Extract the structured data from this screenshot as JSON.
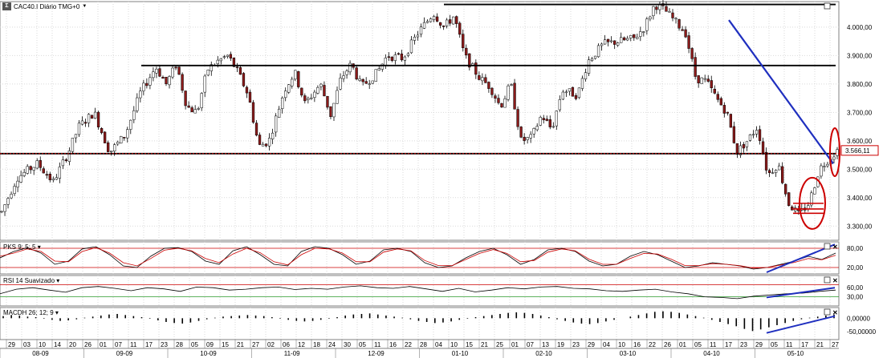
{
  "header": {
    "title": "CAC40.I Diário TMG+0",
    "dropdown_icon": "chevron-down-icon",
    "logo_icon": "chart-logo-icon"
  },
  "colors": {
    "bull_candle": "#ffffff",
    "bear_candle": "#8b1a1a",
    "wick": "#000000",
    "trend_line": "#1f2fbf",
    "horizontal_line": "#000000",
    "red_marker": "#cc0000",
    "grid": "#d9d9d9",
    "price_label_bg": "#ffffff",
    "price_label_border": "#cc0000",
    "indicator_signal": "#cc0000",
    "band_line": "#cc0000",
    "rsi_low_band": "#2a9a2a"
  },
  "chart_data": [
    {
      "type": "candlestick",
      "title": "CAC40.I Diário TMG+0",
      "ylim": [
        3250,
        4090
      ],
      "yticks": [
        "4.000,00",
        "3.900,00",
        "3.800,00",
        "3.700,00",
        "3.600,00",
        "3.500,00",
        "3.400,00",
        "3.300,00"
      ],
      "ytick_values": [
        4000,
        3900,
        3800,
        3700,
        3600,
        3500,
        3400,
        3300
      ],
      "last_price_label": "3.566,11",
      "last_price": 3566.11,
      "horizontal_levels": [
        4080,
        3865,
        3555
      ],
      "trendline": {
        "from_value": 4025,
        "to_value": 3520
      },
      "price_path": [
        [
          0,
          3350
        ],
        [
          6,
          3470
        ],
        [
          14,
          3520
        ],
        [
          20,
          3455
        ],
        [
          26,
          3560
        ],
        [
          30,
          3650
        ],
        [
          36,
          3700
        ],
        [
          42,
          3560
        ],
        [
          48,
          3620
        ],
        [
          54,
          3770
        ],
        [
          60,
          3860
        ],
        [
          64,
          3800
        ],
        [
          68,
          3870
        ],
        [
          72,
          3720
        ],
        [
          76,
          3700
        ],
        [
          80,
          3850
        ],
        [
          84,
          3880
        ],
        [
          88,
          3900
        ],
        [
          92,
          3840
        ],
        [
          96,
          3760
        ],
        [
          100,
          3580
        ],
        [
          104,
          3600
        ],
        [
          110,
          3780
        ],
        [
          114,
          3840
        ],
        [
          118,
          3730
        ],
        [
          124,
          3800
        ],
        [
          128,
          3690
        ],
        [
          132,
          3820
        ],
        [
          136,
          3870
        ],
        [
          140,
          3790
        ],
        [
          146,
          3840
        ],
        [
          150,
          3900
        ],
        [
          156,
          3890
        ],
        [
          162,
          3980
        ],
        [
          168,
          4050
        ],
        [
          172,
          4000
        ],
        [
          176,
          4040
        ],
        [
          180,
          3900
        ],
        [
          186,
          3820
        ],
        [
          190,
          3790
        ],
        [
          194,
          3720
        ],
        [
          198,
          3800
        ],
        [
          202,
          3600
        ],
        [
          206,
          3610
        ],
        [
          210,
          3690
        ],
        [
          214,
          3640
        ],
        [
          218,
          3780
        ],
        [
          224,
          3760
        ],
        [
          228,
          3880
        ],
        [
          234,
          3940
        ],
        [
          240,
          3950
        ],
        [
          246,
          3960
        ],
        [
          250,
          4000
        ],
        [
          254,
          4080
        ],
        [
          258,
          4060
        ],
        [
          262,
          4020
        ],
        [
          266,
          3980
        ],
        [
          270,
          3820
        ],
        [
          274,
          3810
        ],
        [
          278,
          3750
        ],
        [
          282,
          3700
        ],
        [
          286,
          3560
        ],
        [
          290,
          3600
        ],
        [
          294,
          3650
        ],
        [
          298,
          3480
        ],
        [
          302,
          3520
        ],
        [
          306,
          3380
        ],
        [
          310,
          3340
        ],
        [
          314,
          3380
        ],
        [
          318,
          3500
        ],
        [
          322,
          3540
        ],
        [
          325,
          3566
        ]
      ],
      "red_marker_bars": [
        [
          312,
          3380
        ],
        [
          312,
          3360
        ],
        [
          312,
          3345
        ]
      ]
    },
    {
      "type": "line",
      "title": "PKS 9; 5; 5",
      "ylim": [
        0,
        100
      ],
      "yticks": [
        "80,00",
        "20,00"
      ],
      "ytick_values": [
        80,
        20
      ],
      "bands": [
        80,
        20
      ],
      "series": [
        {
          "values": [
            50,
            70,
            82,
            65,
            30,
            40,
            78,
            85,
            60,
            25,
            20,
            55,
            80,
            82,
            70,
            40,
            30,
            72,
            85,
            60,
            30,
            25,
            70,
            85,
            80,
            60,
            30,
            40,
            75,
            80,
            70,
            35,
            20,
            25,
            50,
            70,
            80,
            60,
            30,
            45,
            75,
            80,
            70,
            40,
            25,
            30,
            55,
            70,
            60,
            40,
            20,
            25,
            35,
            30,
            25,
            15,
            20,
            30,
            40,
            55,
            45,
            65
          ]
        },
        {
          "values": [
            55,
            65,
            78,
            70,
            40,
            38,
            70,
            82,
            65,
            35,
            25,
            48,
            74,
            80,
            72,
            48,
            35,
            62,
            80,
            66,
            38,
            28,
            60,
            80,
            78,
            65,
            38,
            38,
            68,
            78,
            72,
            42,
            26,
            26,
            45,
            64,
            76,
            64,
            38,
            42,
            68,
            78,
            72,
            46,
            30,
            30,
            48,
            64,
            62,
            46,
            26,
            26,
            32,
            30,
            26,
            18,
            20,
            28,
            36,
            48,
            44,
            58
          ]
        }
      ],
      "trendline": {
        "from_value": 5,
        "to_value": 92
      }
    },
    {
      "type": "line",
      "title": "RSI 14 Suavizado",
      "ylim": [
        0,
        100
      ],
      "yticks": [
        "60,00",
        "30,00"
      ],
      "ytick_values": [
        60,
        30
      ],
      "bands": [
        70,
        30
      ],
      "series": [
        {
          "values": [
            40,
            55,
            60,
            52,
            45,
            60,
            64,
            58,
            50,
            60,
            56,
            48,
            62,
            60,
            52,
            55,
            60,
            62,
            54,
            58,
            55,
            62,
            66,
            60,
            58,
            64,
            56,
            48,
            58,
            46,
            52,
            60,
            56,
            62,
            64,
            58,
            56,
            50,
            48,
            52,
            55,
            46,
            40,
            30,
            28,
            24,
            32,
            36,
            40,
            42,
            48,
            52
          ]
        }
      ],
      "trendline": {
        "from_value": 28,
        "to_value": 60
      }
    },
    {
      "type": "bar",
      "title": "MACDH 26; 12; 9",
      "ylim": [
        -80,
        40
      ],
      "yticks": [
        "0,00000",
        "-50,00000"
      ],
      "ytick_values": [
        0,
        -50
      ],
      "values": [
        8,
        12,
        10,
        6,
        4,
        -2,
        -6,
        -10,
        -8,
        -4,
        2,
        6,
        10,
        14,
        16,
        12,
        8,
        4,
        -2,
        -8,
        -14,
        -18,
        -20,
        -16,
        -10,
        -4,
        2,
        6,
        8,
        10,
        12,
        10,
        8,
        4,
        -2,
        -6,
        -10,
        -12,
        -10,
        -6,
        -2,
        4,
        10,
        14,
        16,
        18,
        14,
        10,
        6,
        2,
        -4,
        -10,
        -14,
        -18,
        -16,
        -12,
        -6,
        -2,
        4,
        8,
        12,
        16,
        20,
        22,
        20,
        16,
        10,
        4,
        -4,
        -10,
        -16,
        -20,
        -22,
        -18,
        -12,
        -6,
        0,
        6,
        12,
        18,
        24,
        26,
        24,
        20,
        14,
        8,
        2,
        -6,
        -14,
        -22,
        -30,
        -40,
        -48,
        -42,
        -34,
        -26,
        -18,
        -10,
        -4,
        2,
        6,
        10,
        14
      ],
      "trendline": {
        "from_value": -55,
        "to_value": 8
      }
    }
  ],
  "x_axis": {
    "day_ticks": [
      "29",
      "03",
      "10",
      "14",
      "20",
      "26",
      "01",
      "07",
      "11",
      "17",
      "23",
      "28",
      "05",
      "09",
      "15",
      "21",
      "27",
      "02",
      "06",
      "12",
      "18",
      "24",
      "30",
      "05",
      "11",
      "16",
      "22",
      "28",
      "04",
      "10",
      "15",
      "21",
      "25",
      "01",
      "07",
      "13",
      "19",
      "23",
      "29",
      "04",
      "10",
      "16",
      "22",
      "26",
      "01",
      "05",
      "11",
      "17",
      "23",
      "29",
      "05",
      "11",
      "17",
      "21",
      "27"
    ],
    "month_ticks": [
      "08-09",
      "09-09",
      "10-09",
      "11-09",
      "12-09",
      "01-10",
      "02-10",
      "03-10",
      "04-10",
      "05-10"
    ]
  },
  "panel_controls": {
    "maximize_icon": "maximize-icon",
    "close_icon": "close-icon"
  }
}
